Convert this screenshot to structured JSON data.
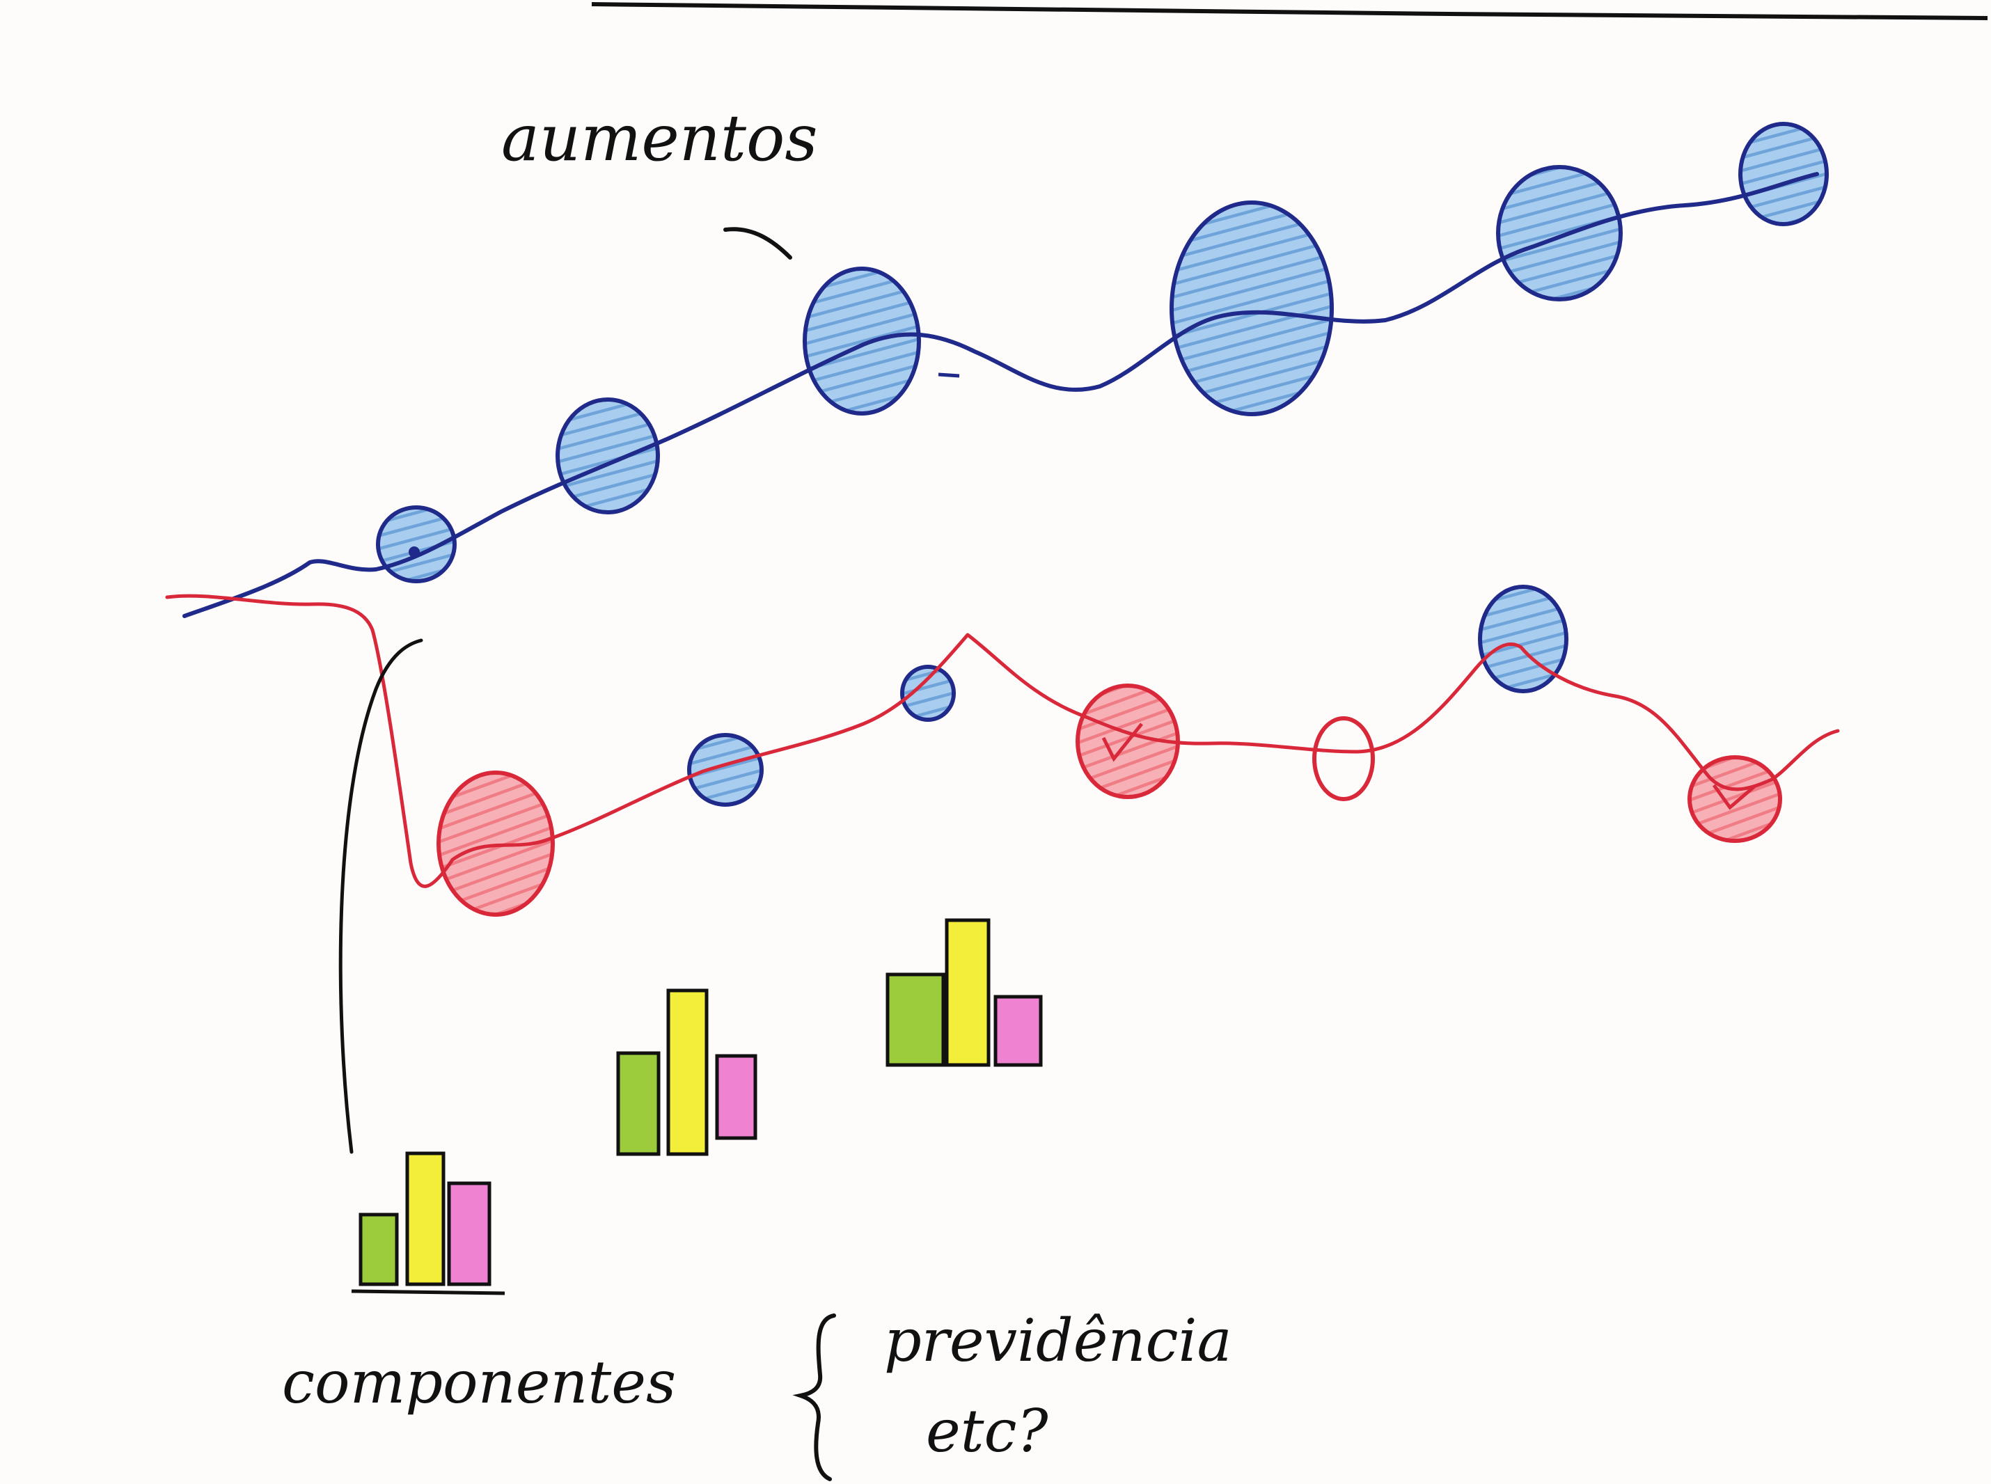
{
  "labels": {
    "top_annotation": "aumentos",
    "bottom_left": "componentes",
    "bottom_right_line1": "previdência",
    "bottom_right_line2": "etc?"
  },
  "colors": {
    "ink": "#111111",
    "blue_line": "#1f2a8a",
    "blue_fill": "#7fb1e3",
    "red_line": "#d8283a",
    "red_fill": "#f28b93",
    "green": "#9ccc3c",
    "yellow": "#f2ee3a",
    "pink": "#ef83d2"
  },
  "icons": {
    "brace": "curly-brace-icon"
  }
}
